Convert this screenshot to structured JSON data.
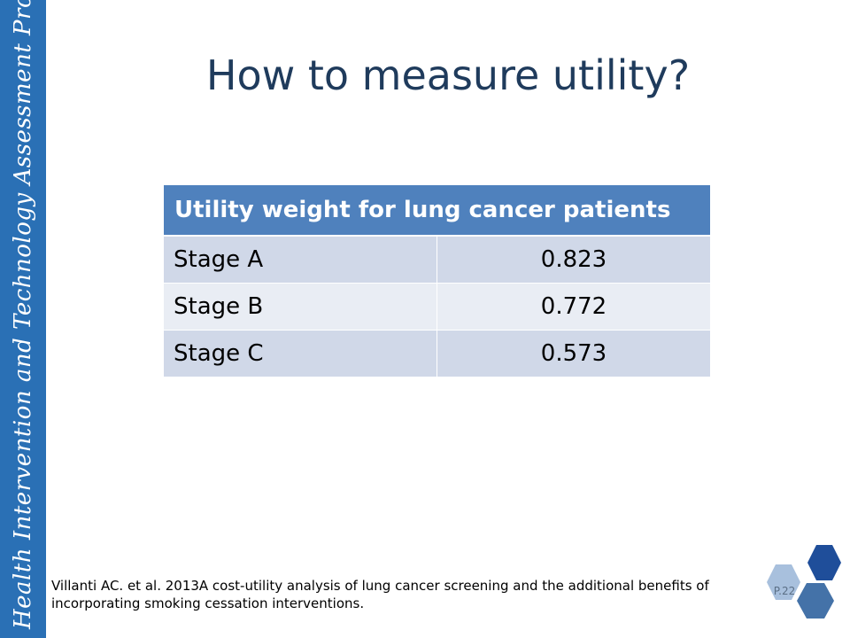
{
  "sidebar": {
    "text": "Health Intervention and Technology Assessment Program"
  },
  "slide": {
    "title": "How to measure utility?"
  },
  "table": {
    "header": "Utility weight for lung cancer patients",
    "rows": [
      {
        "stage": "Stage A",
        "value": "0.823"
      },
      {
        "stage": "Stage B",
        "value": "0.772"
      },
      {
        "stage": "Stage C",
        "value": "0.573"
      }
    ]
  },
  "citation": {
    "text": "Villanti AC. et al. 2013A cost-utility analysis of lung cancer screening and the additional benefits of incorporating smoking cessation interventions."
  },
  "footer": {
    "page_number": "P.22"
  },
  "colors": {
    "sidebar": "#2a70b5",
    "title": "#1f3b5c",
    "table_header": "#4f81bd",
    "row_dark": "#d0d8e8",
    "row_light": "#e9edf4",
    "hex_dark": "#1f4e9a",
    "hex_mid": "#4472a8",
    "hex_light": "#a8c0dd"
  }
}
